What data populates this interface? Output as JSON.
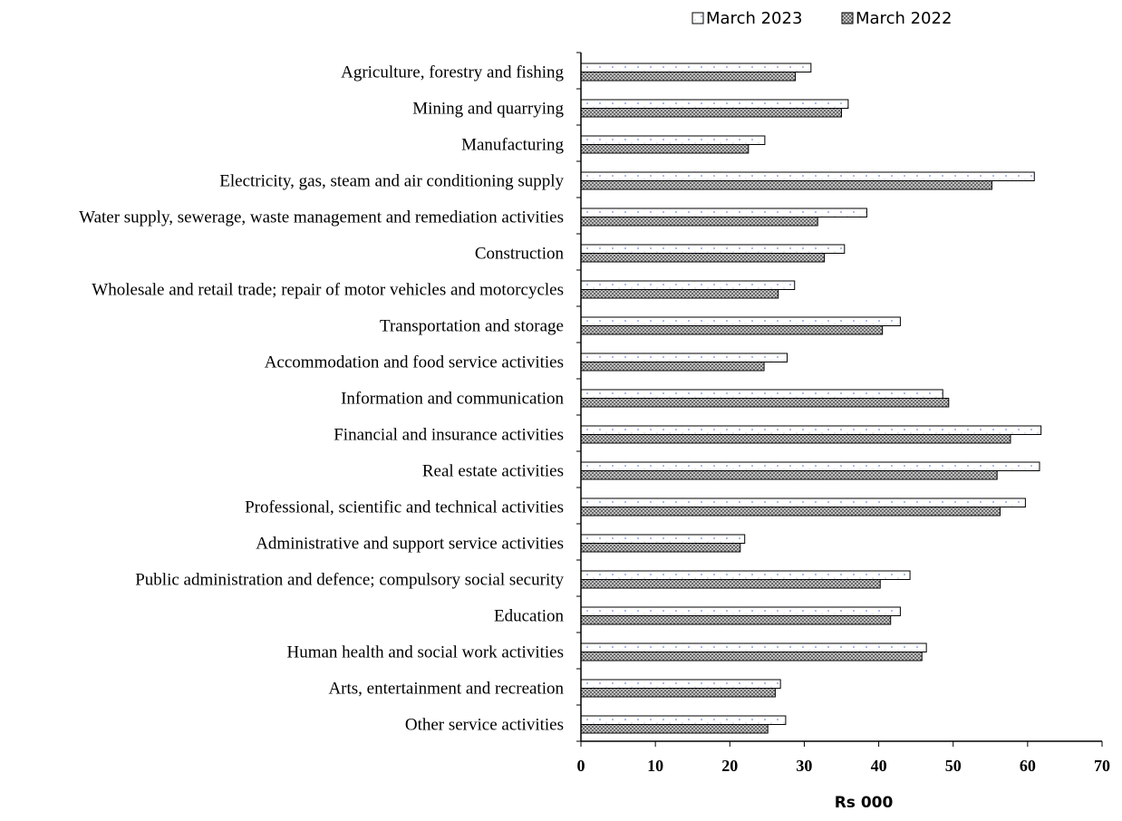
{
  "chart_data": {
    "type": "bar",
    "orientation": "horizontal",
    "categories": [
      "Agriculture, forestry and fishing",
      "Mining and quarrying",
      "Manufacturing",
      "Electricity, gas, steam and air conditioning supply",
      "Water supply, sewerage, waste management and remediation activities",
      "Construction",
      "Wholesale and retail trade; repair of motor vehicles and motorcycles",
      "Transportation and storage",
      "Accommodation and food service activities",
      "Information and communication",
      "Financial and insurance activities",
      "Real estate activities",
      "Professional, scientific and technical activities",
      "Administrative and support service activities",
      "Public administration and defence; compulsory social security",
      "Education",
      "Human health and social work activities",
      "Arts, entertainment and recreation",
      "Other service activities"
    ],
    "series": [
      {
        "name": "March 2023",
        "values": [
          30.9,
          35.9,
          24.7,
          60.9,
          38.4,
          35.4,
          28.7,
          42.9,
          27.7,
          48.6,
          61.8,
          61.6,
          59.7,
          22.0,
          44.2,
          42.9,
          46.4,
          26.8,
          27.5
        ],
        "fill": "#ffffff",
        "pattern": "dotted"
      },
      {
        "name": "March 2022",
        "values": [
          28.8,
          35.0,
          22.5,
          55.2,
          31.8,
          32.7,
          26.5,
          40.5,
          24.6,
          49.4,
          57.7,
          55.9,
          56.3,
          21.4,
          40.2,
          41.6,
          45.8,
          26.1,
          25.1
        ],
        "fill": "#9a9a9a",
        "pattern": "crosshatch"
      }
    ],
    "xlabel": "Rs 000",
    "ylabel": "",
    "xlim": [
      0,
      70
    ],
    "xticks": [
      0,
      10,
      20,
      30,
      40,
      50,
      60,
      70
    ],
    "grid": false,
    "legend_position": "top-right"
  }
}
